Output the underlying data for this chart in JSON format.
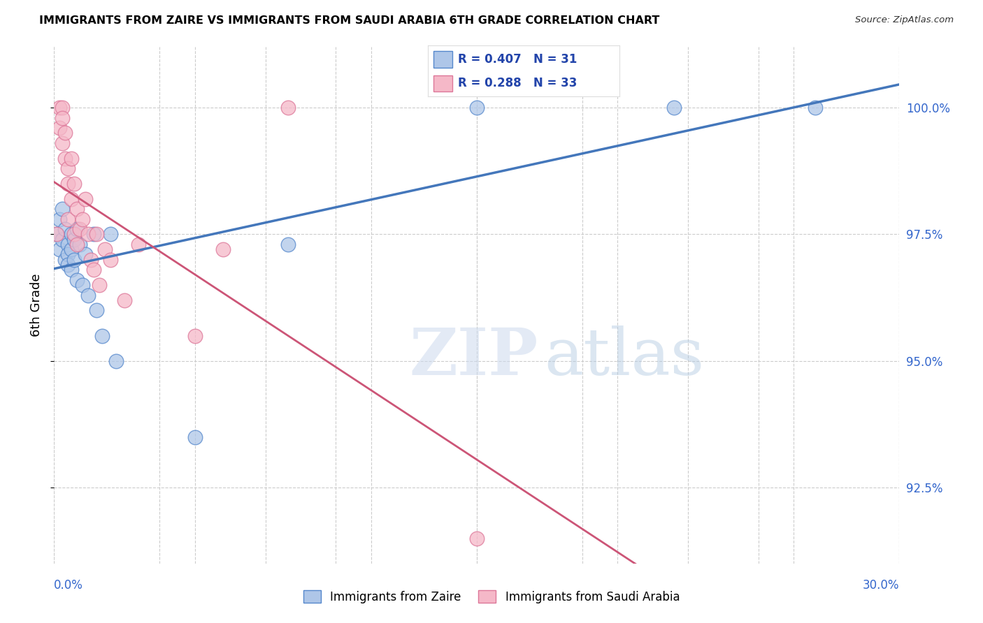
{
  "title": "IMMIGRANTS FROM ZAIRE VS IMMIGRANTS FROM SAUDI ARABIA 6TH GRADE CORRELATION CHART",
  "source": "Source: ZipAtlas.com",
  "ylabel": "6th Grade",
  "yticks": [
    92.5,
    95.0,
    97.5,
    100.0
  ],
  "ytick_labels": [
    "92.5%",
    "95.0%",
    "97.5%",
    "100.0%"
  ],
  "xmin": 0.0,
  "xmax": 0.3,
  "ymin": 91.0,
  "ymax": 101.2,
  "legend_zaire": "R = 0.407   N = 31",
  "legend_saudi": "R = 0.288   N = 33",
  "zaire_color": "#aec6e8",
  "saudi_color": "#f5b8c8",
  "zaire_edge_color": "#5588cc",
  "saudi_edge_color": "#dd7799",
  "zaire_line_color": "#4477bb",
  "saudi_line_color": "#cc5577",
  "watermark_zip": "ZIP",
  "watermark_atlas": "atlas",
  "zaire_scatter_x": [
    0.001,
    0.002,
    0.002,
    0.003,
    0.003,
    0.004,
    0.004,
    0.005,
    0.005,
    0.005,
    0.006,
    0.006,
    0.006,
    0.007,
    0.007,
    0.008,
    0.008,
    0.009,
    0.01,
    0.011,
    0.012,
    0.014,
    0.015,
    0.017,
    0.02,
    0.022,
    0.05,
    0.083,
    0.15,
    0.22,
    0.27
  ],
  "zaire_scatter_y": [
    97.5,
    97.8,
    97.2,
    98.0,
    97.4,
    97.6,
    97.0,
    97.3,
    97.1,
    96.9,
    97.5,
    97.2,
    96.8,
    97.4,
    97.0,
    97.6,
    96.6,
    97.3,
    96.5,
    97.1,
    96.3,
    97.5,
    96.0,
    95.5,
    97.5,
    95.0,
    93.5,
    97.3,
    100.0,
    100.0,
    100.0
  ],
  "saudi_scatter_x": [
    0.001,
    0.002,
    0.002,
    0.003,
    0.003,
    0.003,
    0.004,
    0.004,
    0.005,
    0.005,
    0.005,
    0.006,
    0.006,
    0.007,
    0.007,
    0.008,
    0.008,
    0.009,
    0.01,
    0.011,
    0.012,
    0.013,
    0.014,
    0.015,
    0.016,
    0.018,
    0.02,
    0.025,
    0.03,
    0.05,
    0.06,
    0.083,
    0.15
  ],
  "saudi_scatter_y": [
    97.5,
    100.0,
    99.6,
    100.0,
    99.8,
    99.3,
    99.5,
    99.0,
    98.8,
    98.5,
    97.8,
    99.0,
    98.2,
    98.5,
    97.5,
    98.0,
    97.3,
    97.6,
    97.8,
    98.2,
    97.5,
    97.0,
    96.8,
    97.5,
    96.5,
    97.2,
    97.0,
    96.2,
    97.3,
    95.5,
    97.2,
    100.0,
    91.5
  ]
}
